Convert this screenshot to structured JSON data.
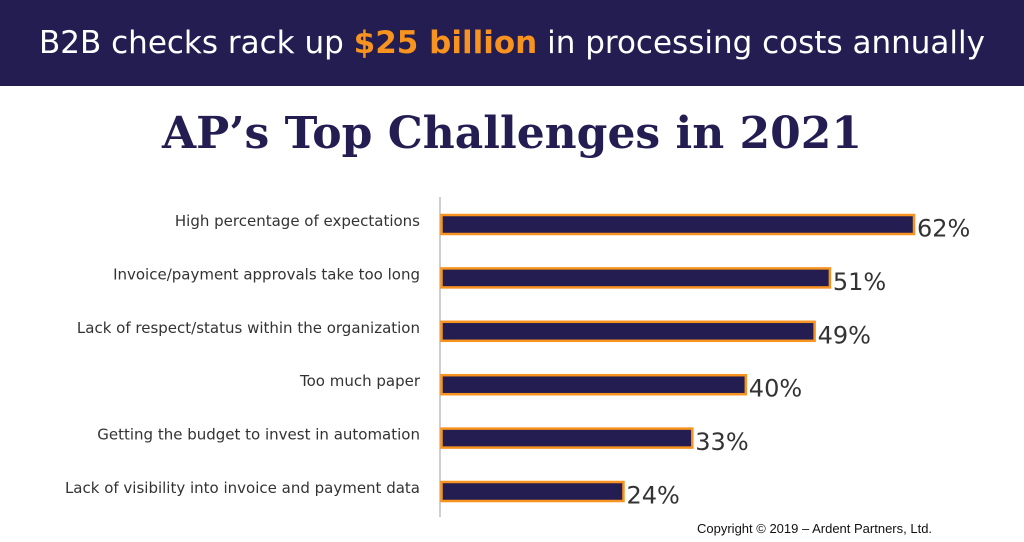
{
  "banner": {
    "prefix": "B2B checks rack up ",
    "highlight": "$25 billion",
    "suffix": " in processing costs annually"
  },
  "colors": {
    "navy": "#231d52",
    "orange": "#f7931e"
  },
  "chart_data": {
    "type": "bar",
    "orientation": "horizontal",
    "title": "AP’s Top Challenges in 2021",
    "categories": [
      "High percentage of expectations",
      "Invoice/payment approvals take too long",
      "Lack of respect/status within the organization",
      "Too much paper",
      "Getting the budget to invest in automation",
      "Lack of visibility into invoice and payment data"
    ],
    "values": [
      62,
      51,
      49,
      40,
      33,
      24
    ],
    "value_labels": [
      "62%",
      "51%",
      "49%",
      "40%",
      "33%",
      "24%"
    ],
    "xlim": [
      0,
      62
    ],
    "grid": false
  },
  "footer": {
    "copyright": "Copyright © 2019 – Ardent Partners, Ltd."
  }
}
